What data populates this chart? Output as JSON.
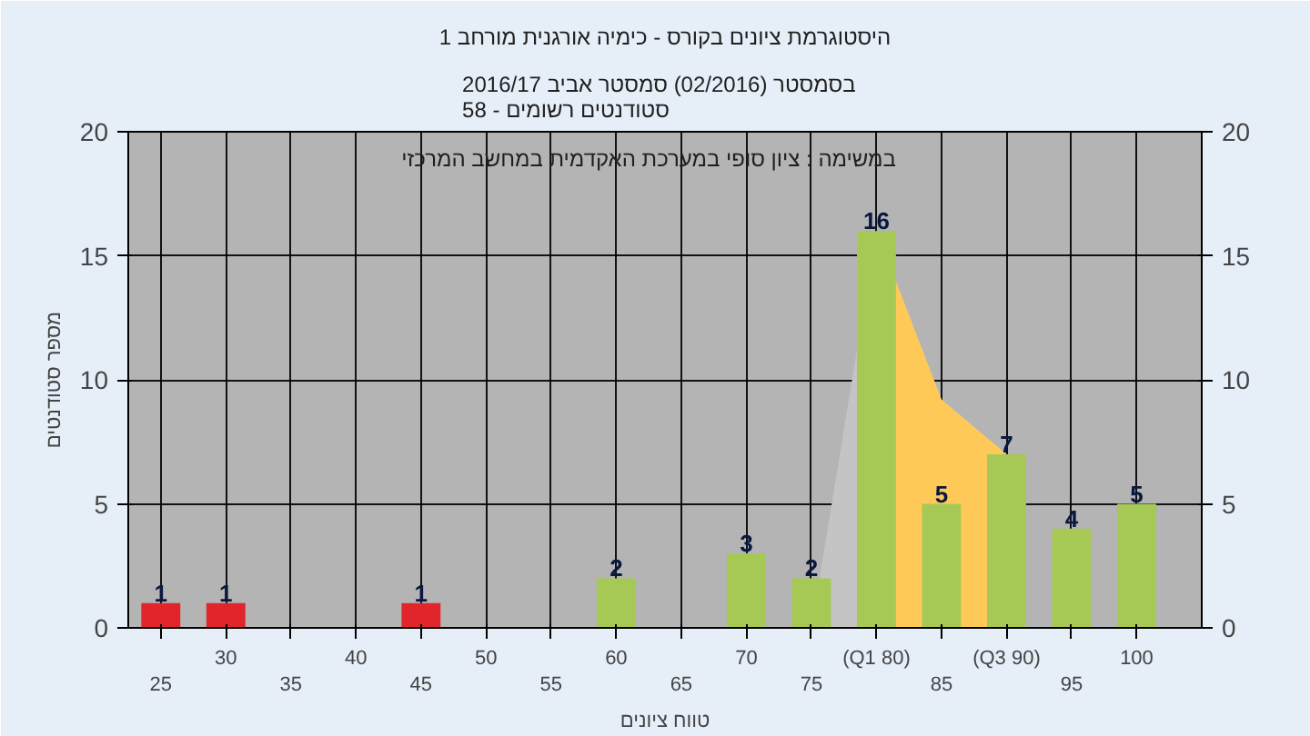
{
  "chart_data": {
    "type": "bar",
    "title": "היסטוגרמת ציונים בקורס - כימיה אורגנית מורחב 1",
    "subtitle": "בסמסטר  (02/2016)  סמסטר אביב 2016/17\nסטודנטים רשומים - 58",
    "xlabel": "טווח ציונים",
    "ylabel": "מספר סטודנטים",
    "annotations": [
      "במשימה : ציון סופי במערכת האקדמית במחשב המרכזי"
    ],
    "categories": [
      "25",
      "30",
      "35",
      "40",
      "45",
      "50",
      "55",
      "60",
      "65",
      "70",
      "75",
      "(Q1 80)",
      "85",
      "(Q3 90)",
      "95",
      "100"
    ],
    "series": [
      {
        "type": "area",
        "color": "#c4c4c4",
        "values": [
          null,
          null,
          null,
          null,
          null,
          null,
          null,
          null,
          null,
          null,
          0,
          16,
          9.2,
          7,
          null,
          null
        ]
      },
      {
        "type": "area",
        "color": "#ffc957",
        "values": [
          null,
          null,
          null,
          null,
          null,
          null,
          null,
          null,
          null,
          null,
          null,
          16,
          9.2,
          7,
          null,
          null
        ]
      },
      {
        "colors": [
          "#e0262a",
          "#e0262a",
          null,
          null,
          "#e0262a",
          null,
          null,
          "#a6c955",
          null,
          "#a6c955",
          "#a6c955",
          "#a6c955",
          "#a6c955",
          "#a6c955",
          "#a6c955",
          "#a6c955"
        ],
        "values": [
          1,
          1,
          null,
          null,
          1,
          null,
          null,
          2,
          null,
          3,
          2,
          16,
          5,
          7,
          4,
          5
        ],
        "value_labels": [
          "1",
          "1",
          null,
          null,
          "1",
          null,
          null,
          "2",
          null,
          "3",
          "2",
          "16",
          "5",
          "7",
          "4",
          "5"
        ]
      }
    ],
    "ylim": [
      0,
      20
    ],
    "yticks": [
      0,
      5,
      10,
      15,
      20
    ],
    "y2lim": [
      0,
      20
    ],
    "y2ticks": [
      0,
      5,
      10,
      15,
      20
    ],
    "grid": true
  }
}
